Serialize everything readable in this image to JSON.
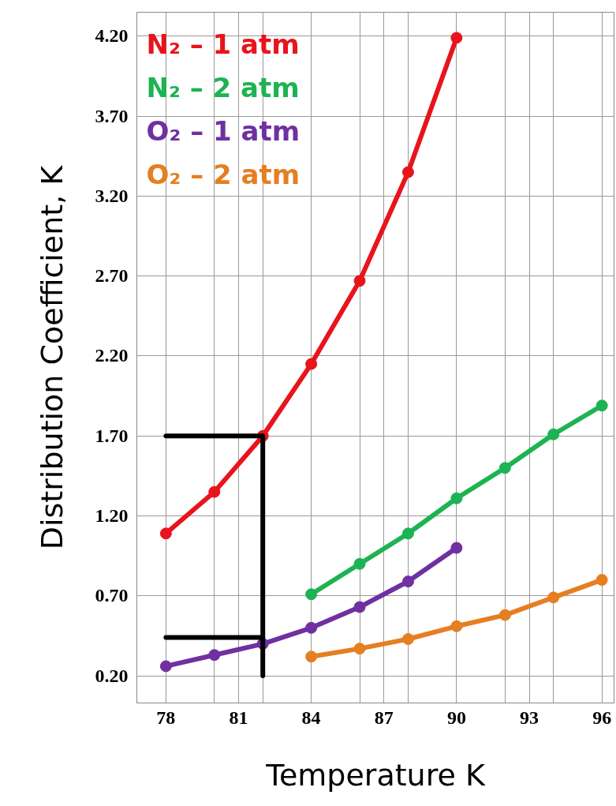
{
  "chart_data": {
    "type": "line",
    "xlabel": "Temperature K",
    "ylabel": "Distribution Coefficient, K",
    "xlim": [
      76.8,
      96.5
    ],
    "ylim": [
      0.03,
      4.35
    ],
    "xticks": [
      78,
      {
        "value": 80,
        "label": null
      },
      81,
      {
        "value": 82,
        "label": null
      },
      84,
      {
        "value": 86,
        "label": null
      },
      87,
      {
        "value": 88,
        "label": null
      },
      90,
      {
        "value": 92,
        "label": null
      },
      93,
      {
        "value": 94,
        "label": null
      },
      96
    ],
    "yticks": [
      {
        "value": 0.2,
        "label": "0.20"
      },
      {
        "value": 0.7,
        "label": "0.70"
      },
      {
        "value": 1.2,
        "label": "1.20"
      },
      {
        "value": 1.7,
        "label": "1.70"
      },
      {
        "value": 2.2,
        "label": "2.20"
      },
      {
        "value": 2.7,
        "label": "2.70"
      },
      {
        "value": 3.2,
        "label": "3.20"
      },
      {
        "value": 3.7,
        "label": "3.70"
      },
      {
        "value": 4.2,
        "label": "4.20"
      }
    ],
    "grid": true,
    "legend": "top left",
    "marker": "circle",
    "line_style": "solid",
    "series": [
      {
        "name": "N₂ – 1 atm",
        "color": "#e8141c",
        "x": [
          78,
          80,
          82,
          84,
          86,
          88,
          90
        ],
        "values": [
          1.09,
          1.35,
          1.7,
          2.15,
          2.67,
          3.35,
          4.19
        ]
      },
      {
        "name": "N₂ – 2 atm",
        "color": "#1db352",
        "x": [
          84,
          86,
          88,
          90,
          92,
          94,
          96
        ],
        "values": [
          0.71,
          0.9,
          1.09,
          1.31,
          1.5,
          1.71,
          1.89
        ]
      },
      {
        "name": "O₂ – 1 atm",
        "color": "#7030a0",
        "x": [
          78,
          80,
          82,
          84,
          86,
          88,
          90
        ],
        "values": [
          0.26,
          0.33,
          0.4,
          0.5,
          0.63,
          0.79,
          1.0
        ]
      },
      {
        "name": "O₂ – 2 atm",
        "color": "#e67e22",
        "x": [
          84,
          86,
          88,
          90,
          92,
          94,
          96
        ],
        "values": [
          0.32,
          0.37,
          0.43,
          0.51,
          0.58,
          0.69,
          0.8
        ]
      },
      {
        "color": "#000000",
        "marker": "none",
        "x": [
          78,
          82,
          82
        ],
        "values": [
          1.7,
          1.7,
          0.2
        ]
      },
      {
        "color": "#000000",
        "marker": "none",
        "x": [
          78,
          82
        ],
        "values": [
          0.44,
          0.44
        ]
      }
    ]
  }
}
